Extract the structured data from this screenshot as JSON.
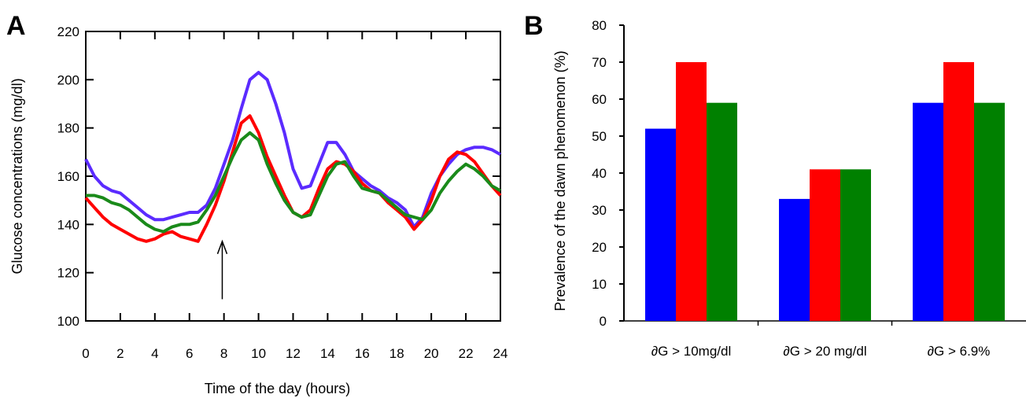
{
  "panels": {
    "a_letter": "A",
    "b_letter": "B"
  },
  "colors": {
    "blue": "#5b2bff",
    "red": "#ff0000",
    "green": "#1a8a1a",
    "bar_blue": "#0000ff",
    "bar_red": "#ff0000",
    "bar_green": "#008000"
  },
  "chart_data": [
    {
      "type": "line",
      "xlabel": "Time of the day (hours)",
      "ylabel": "Glucose concentrations (mg/dl)",
      "xlim": [
        0,
        24
      ],
      "ylim": [
        100,
        220
      ],
      "xticks": [
        0,
        2,
        4,
        6,
        8,
        10,
        12,
        14,
        16,
        18,
        20,
        22,
        24
      ],
      "yticks": [
        100,
        120,
        140,
        160,
        180,
        200,
        220
      ],
      "grid": false,
      "annotation": {
        "type": "arrow",
        "x": 7.9,
        "y_tail": 109,
        "y_head": 133
      },
      "series": [
        {
          "color": "#5b2bff",
          "x": [
            0,
            0.5,
            1,
            1.5,
            2,
            2.5,
            3,
            3.5,
            4,
            4.5,
            5,
            5.5,
            6,
            6.5,
            7,
            7.5,
            8,
            8.5,
            9,
            9.5,
            10,
            10.5,
            11,
            11.5,
            12,
            12.5,
            13,
            13.5,
            14,
            14.5,
            15,
            15.5,
            16,
            16.5,
            17,
            17.5,
            18,
            18.5,
            19,
            19.5,
            20,
            20.5,
            21,
            21.5,
            22,
            22.5,
            23,
            23.5,
            24
          ],
          "y": [
            167,
            160,
            156,
            154,
            153,
            150,
            147,
            144,
            142,
            142,
            143,
            144,
            145,
            145,
            148,
            155,
            165,
            175,
            188,
            200,
            203,
            200,
            190,
            178,
            163,
            155,
            156,
            165,
            174,
            174,
            169,
            162,
            159,
            156,
            154,
            151,
            149,
            146,
            139,
            143,
            153,
            160,
            165,
            169,
            171,
            172,
            172,
            171,
            169
          ]
        },
        {
          "color": "#ff0000",
          "x": [
            0,
            0.5,
            1,
            1.5,
            2,
            2.5,
            3,
            3.5,
            4,
            4.5,
            5,
            5.5,
            6,
            6.5,
            7,
            7.5,
            8,
            8.5,
            9,
            9.5,
            10,
            10.5,
            11,
            11.5,
            12,
            12.5,
            13,
            13.5,
            14,
            14.5,
            15,
            15.5,
            16,
            16.5,
            17,
            17.5,
            18,
            18.5,
            19,
            19.5,
            20,
            20.5,
            21,
            21.5,
            22,
            22.5,
            23,
            23.5,
            24
          ],
          "y": [
            151,
            147,
            143,
            140,
            138,
            136,
            134,
            133,
            134,
            136,
            137,
            135,
            134,
            133,
            140,
            148,
            158,
            170,
            182,
            185,
            178,
            168,
            160,
            152,
            145,
            143,
            146,
            155,
            163,
            166,
            165,
            162,
            157,
            154,
            153,
            149,
            146,
            143,
            138,
            142,
            150,
            160,
            167,
            170,
            169,
            166,
            161,
            156,
            152
          ]
        },
        {
          "color": "#1a8a1a",
          "x": [
            0,
            0.5,
            1,
            1.5,
            2,
            2.5,
            3,
            3.5,
            4,
            4.5,
            5,
            5.5,
            6,
            6.5,
            7,
            7.5,
            8,
            8.5,
            9,
            9.5,
            10,
            10.5,
            11,
            11.5,
            12,
            12.5,
            13,
            13.5,
            14,
            14.5,
            15,
            15.5,
            16,
            16.5,
            17,
            17.5,
            18,
            18.5,
            19,
            19.5,
            20,
            20.5,
            21,
            21.5,
            22,
            22.5,
            23,
            23.5,
            24
          ],
          "y": [
            152,
            152,
            151,
            149,
            148,
            146,
            143,
            140,
            138,
            137,
            139,
            140,
            140,
            141,
            146,
            152,
            160,
            168,
            175,
            178,
            175,
            165,
            157,
            150,
            145,
            143,
            144,
            152,
            160,
            165,
            166,
            160,
            155,
            154,
            153,
            150,
            147,
            144,
            143,
            142,
            146,
            153,
            158,
            162,
            165,
            163,
            160,
            156,
            154
          ]
        }
      ]
    },
    {
      "type": "bar",
      "ylabel": "Prevalence of the dawn phenomenon (%)",
      "ylim": [
        0,
        80
      ],
      "yticks": [
        0,
        10,
        20,
        30,
        40,
        50,
        60,
        70,
        80
      ],
      "grid": false,
      "categories": [
        "∂G > 10mg/dl",
        "∂G > 20 mg/dl",
        "∂G > 6.9%"
      ],
      "series": [
        {
          "color": "#0000ff",
          "values": [
            52,
            33,
            59
          ]
        },
        {
          "color": "#ff0000",
          "values": [
            70,
            41,
            70
          ]
        },
        {
          "color": "#008000",
          "values": [
            59,
            41,
            59
          ]
        }
      ]
    }
  ]
}
